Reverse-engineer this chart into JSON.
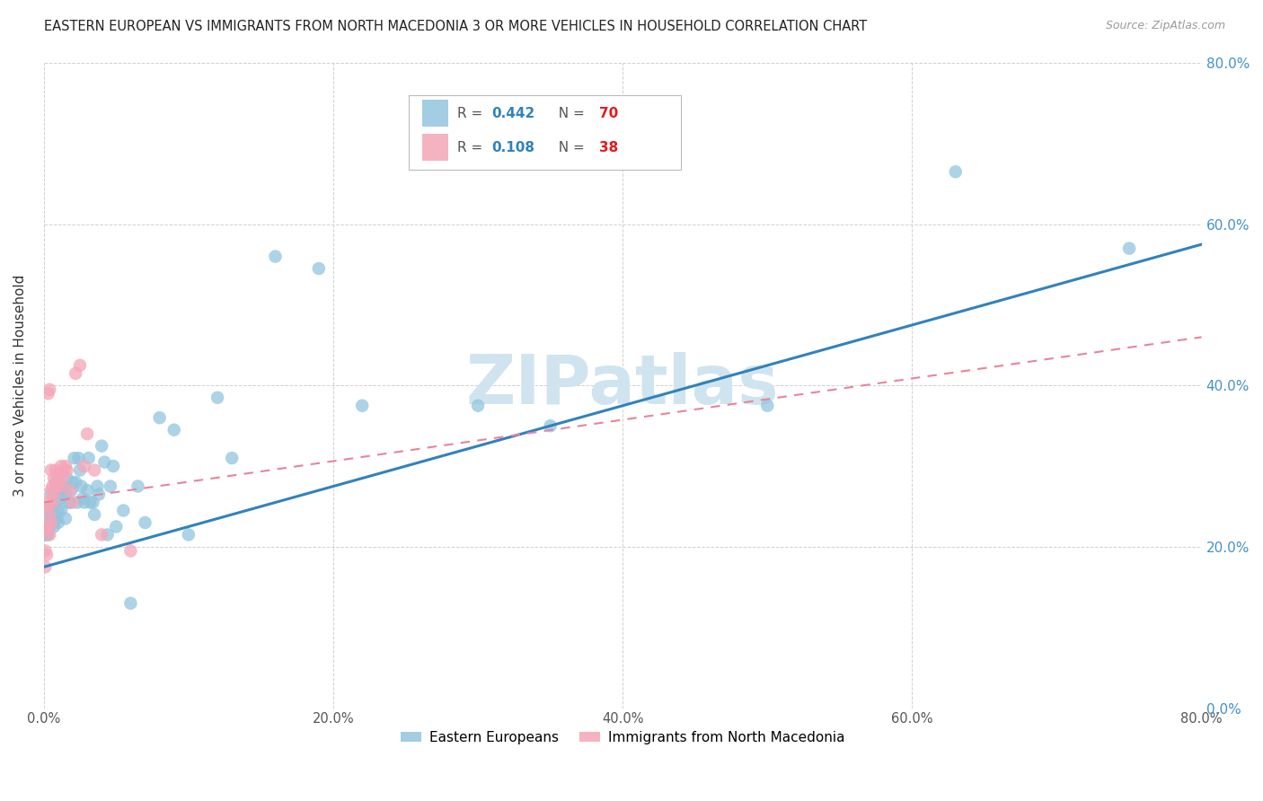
{
  "title": "EASTERN EUROPEAN VS IMMIGRANTS FROM NORTH MACEDONIA 3 OR MORE VEHICLES IN HOUSEHOLD CORRELATION CHART",
  "source": "Source: ZipAtlas.com",
  "ylabel": "3 or more Vehicles in Household",
  "xlim": [
    0.0,
    0.8
  ],
  "ylim": [
    0.0,
    0.8
  ],
  "xticks": [
    0.0,
    0.2,
    0.4,
    0.6,
    0.8
  ],
  "yticks": [
    0.0,
    0.2,
    0.4,
    0.6,
    0.8
  ],
  "xticklabels": [
    "0.0%",
    "20.0%",
    "40.0%",
    "60.0%",
    "80.0%"
  ],
  "yticklabels": [
    "0.0%",
    "20.0%",
    "40.0%",
    "60.0%",
    "80.0%"
  ],
  "blue_R": 0.442,
  "blue_N": 70,
  "pink_R": 0.108,
  "pink_N": 38,
  "blue_color": "#92c5de",
  "pink_color": "#f4a6b8",
  "blue_line_color": "#3182bd",
  "pink_line_color": "#e8849a",
  "grid_color": "#d0d0d0",
  "right_tick_color": "#4292c6",
  "watermark_color": "#d0e4f0",
  "blue_line_x0": 0.0,
  "blue_line_y0": 0.175,
  "blue_line_x1": 0.8,
  "blue_line_y1": 0.575,
  "pink_line_x0": 0.0,
  "pink_line_y0": 0.255,
  "pink_line_x1": 0.8,
  "pink_line_y1": 0.46,
  "blue_scatter_x": [
    0.001,
    0.002,
    0.002,
    0.003,
    0.003,
    0.004,
    0.004,
    0.005,
    0.005,
    0.005,
    0.006,
    0.006,
    0.007,
    0.007,
    0.008,
    0.008,
    0.009,
    0.009,
    0.01,
    0.01,
    0.011,
    0.012,
    0.012,
    0.013,
    0.014,
    0.015,
    0.015,
    0.016,
    0.017,
    0.018,
    0.019,
    0.02,
    0.021,
    0.022,
    0.023,
    0.024,
    0.025,
    0.026,
    0.027,
    0.028,
    0.03,
    0.031,
    0.032,
    0.034,
    0.035,
    0.037,
    0.038,
    0.04,
    0.042,
    0.044,
    0.046,
    0.048,
    0.05,
    0.055,
    0.06,
    0.065,
    0.07,
    0.08,
    0.09,
    0.1,
    0.12,
    0.13,
    0.16,
    0.19,
    0.22,
    0.3,
    0.35,
    0.5,
    0.63,
    0.75
  ],
  "blue_scatter_y": [
    0.215,
    0.235,
    0.215,
    0.22,
    0.215,
    0.245,
    0.225,
    0.235,
    0.265,
    0.23,
    0.235,
    0.25,
    0.225,
    0.265,
    0.255,
    0.24,
    0.235,
    0.27,
    0.245,
    0.23,
    0.26,
    0.27,
    0.245,
    0.275,
    0.27,
    0.265,
    0.235,
    0.285,
    0.255,
    0.255,
    0.27,
    0.28,
    0.31,
    0.28,
    0.255,
    0.31,
    0.295,
    0.275,
    0.26,
    0.255,
    0.27,
    0.31,
    0.255,
    0.255,
    0.24,
    0.275,
    0.265,
    0.325,
    0.305,
    0.215,
    0.275,
    0.3,
    0.225,
    0.245,
    0.13,
    0.275,
    0.23,
    0.36,
    0.345,
    0.215,
    0.385,
    0.31,
    0.56,
    0.545,
    0.375,
    0.375,
    0.35,
    0.375,
    0.665,
    0.57
  ],
  "pink_scatter_x": [
    0.001,
    0.001,
    0.002,
    0.002,
    0.002,
    0.003,
    0.003,
    0.003,
    0.004,
    0.004,
    0.004,
    0.005,
    0.005,
    0.005,
    0.006,
    0.006,
    0.007,
    0.007,
    0.008,
    0.008,
    0.009,
    0.009,
    0.01,
    0.011,
    0.012,
    0.013,
    0.014,
    0.015,
    0.016,
    0.018,
    0.02,
    0.022,
    0.025,
    0.028,
    0.03,
    0.035,
    0.04,
    0.06
  ],
  "pink_scatter_y": [
    0.175,
    0.195,
    0.19,
    0.22,
    0.255,
    0.225,
    0.25,
    0.39,
    0.215,
    0.24,
    0.395,
    0.23,
    0.27,
    0.295,
    0.255,
    0.275,
    0.265,
    0.285,
    0.28,
    0.295,
    0.275,
    0.29,
    0.28,
    0.275,
    0.3,
    0.285,
    0.295,
    0.3,
    0.295,
    0.27,
    0.255,
    0.415,
    0.425,
    0.3,
    0.34,
    0.295,
    0.215,
    0.195
  ]
}
